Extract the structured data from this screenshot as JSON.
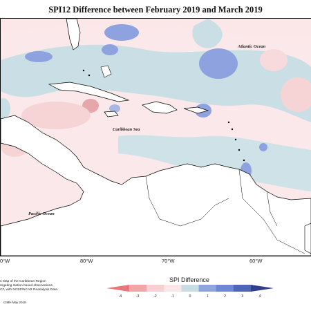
{
  "title": "SPI12 Difference between February 2019 and March 2019",
  "labels": {
    "atlantic": "Atlantic Ocean",
    "caribbean": "Caribbean Sea",
    "pacific": "Pacific Ocean"
  },
  "longitude_ticks": [
    "80°W",
    "70°W",
    "60°W"
  ],
  "left_tick_fragment": "0°W",
  "footnote": "n Map of the Caribbean Region\nregating station based observations,\nCF, with NCEP/NCAR Reanalysis Data.",
  "credit": "CIMH May 2019",
  "legend": {
    "title": "SPI Difference",
    "ticks": [
      "-4",
      "-3",
      "-2",
      "-1",
      "0",
      "1",
      "2",
      "3",
      "4"
    ],
    "colors": [
      "#e8767a",
      "#f2a6a8",
      "#f8d0d2",
      "#fbe6e8",
      "#c7dde3",
      "#8fa4e0",
      "#6f87d4",
      "#4f66b8",
      "#313f8c"
    ]
  }
}
